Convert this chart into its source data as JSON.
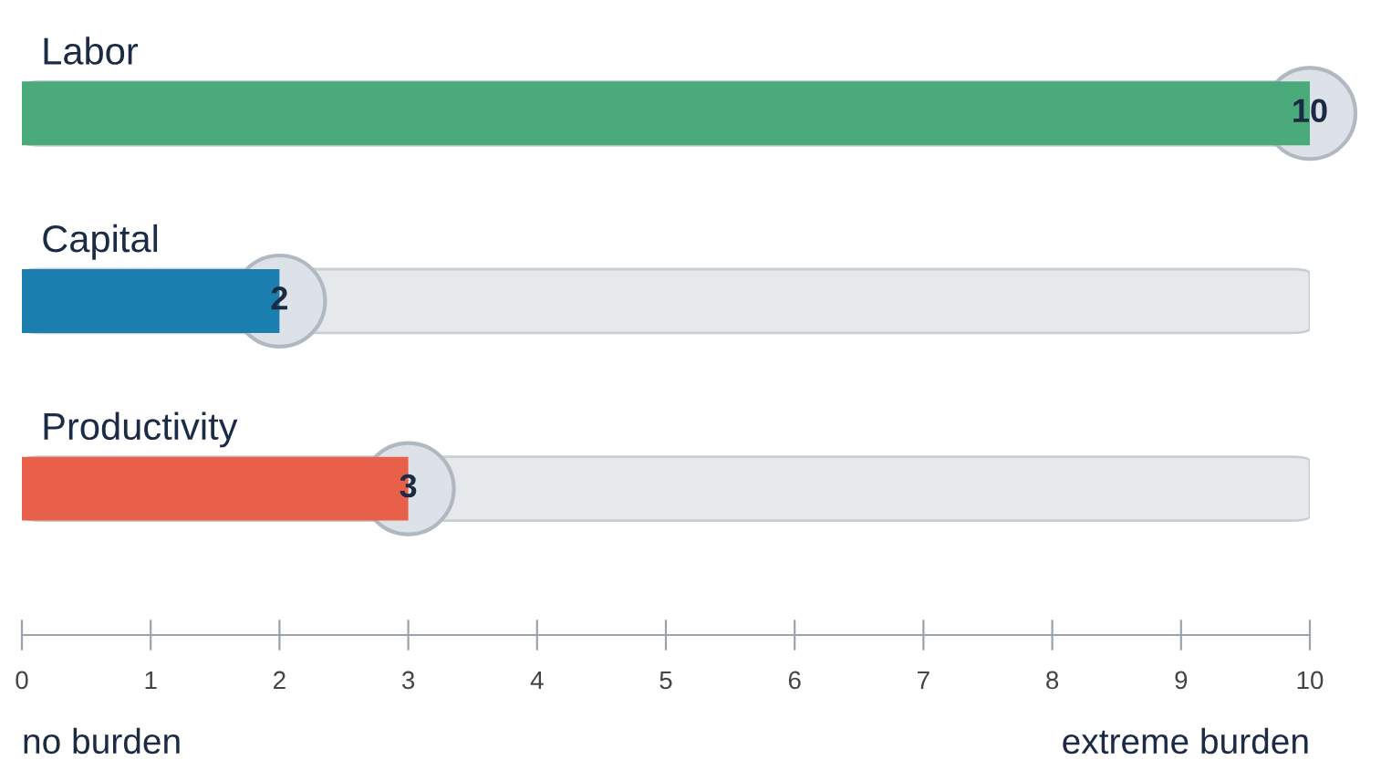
{
  "chart_data": {
    "type": "bar",
    "orientation": "horizontal",
    "categories": [
      "Labor",
      "Capital",
      "Productivity"
    ],
    "values": [
      10,
      2,
      3
    ],
    "colors": [
      "#4aaa7a",
      "#1a7fae",
      "#e8604a"
    ],
    "xlim": [
      0,
      10
    ],
    "xticks": [
      0,
      1,
      2,
      3,
      4,
      5,
      6,
      7,
      8,
      9,
      10
    ],
    "data_labels": true,
    "grid": false,
    "annotations": [
      "no burden",
      "extreme burden"
    ]
  }
}
